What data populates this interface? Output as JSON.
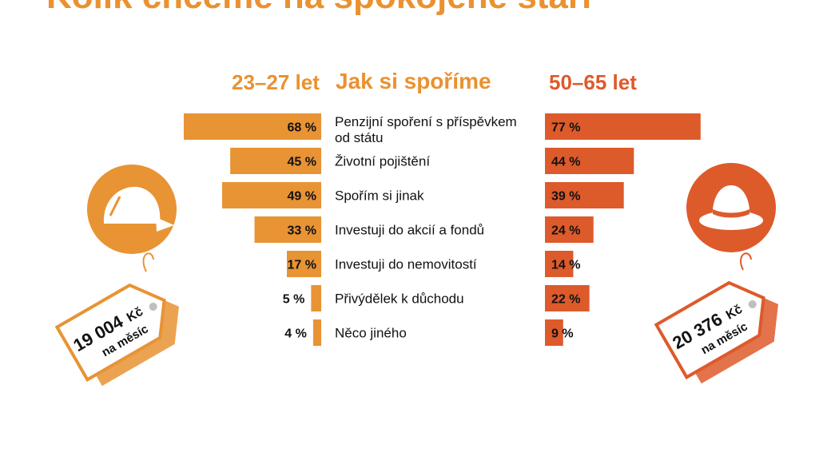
{
  "header": {
    "title": "Kolik chceme na spokojené stáří"
  },
  "chart_data": {
    "type": "bar",
    "title": "Jak si spoříme",
    "categories": [
      [
        "Penzijní spoření s příspěvkem",
        "od státu"
      ],
      [
        "Životní pojištění"
      ],
      [
        "Spořím si jinak"
      ],
      [
        "Investuji do akcií a fondů"
      ],
      [
        "Investuji do nemovitostí"
      ],
      [
        "Přivýdělek k důchodu"
      ],
      [
        "Něco jiného"
      ]
    ],
    "series": [
      {
        "name": "23–27 let",
        "values": [
          68,
          45,
          49,
          33,
          17,
          5,
          4
        ],
        "labels": [
          "68 %",
          "45 %",
          "49 %",
          "33 %",
          "17 %",
          "5 %",
          "4 %"
        ],
        "color": "#e89334"
      },
      {
        "name": "50–65 let",
        "values": [
          77,
          44,
          39,
          24,
          14,
          22,
          9
        ],
        "labels": [
          "77 %",
          "44 %",
          "39 %",
          "24 %",
          "14 %",
          "22 %",
          "9 %"
        ],
        "color": "#dd5a2b"
      }
    ],
    "tags": [
      {
        "amount": "19 004",
        "unit": "Kč",
        "period": "na měsíc",
        "icon": "cap-icon",
        "color": "#e89334"
      },
      {
        "amount": "20 376",
        "unit": "Kč",
        "period": "na měsíc",
        "icon": "hat-icon",
        "color": "#dd5a2b"
      }
    ]
  }
}
